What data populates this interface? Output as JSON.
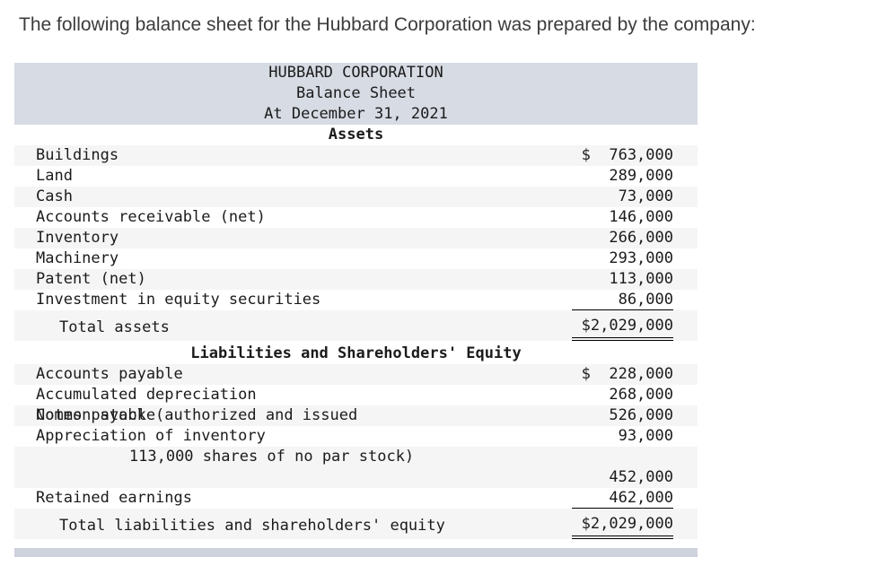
{
  "intro": "The following balance sheet for the Hubbard Corporation was prepared by the company:",
  "statement": {
    "company": "HUBBARD CORPORATION",
    "title": "Balance Sheet",
    "date": "At December 31, 2021"
  },
  "assets": {
    "heading": "Assets",
    "rows": [
      {
        "label": "Buildings",
        "value": "$  763,000"
      },
      {
        "label": "Land",
        "value": "289,000"
      },
      {
        "label": "Cash",
        "value": "73,000"
      },
      {
        "label": "Accounts receivable (net)",
        "value": "146,000"
      },
      {
        "label": "Inventory",
        "value": "266,000"
      },
      {
        "label": "Machinery",
        "value": "293,000"
      },
      {
        "label": "Patent (net)",
        "value": "113,000"
      },
      {
        "label": "Investment in equity securities",
        "value": "86,000"
      }
    ],
    "total": {
      "label": "Total assets",
      "value": "$2,029,000"
    }
  },
  "liabilities": {
    "heading": "Liabilities and Shareholders' Equity",
    "rows": [
      {
        "label": "Accounts payable",
        "value": "$  228,000"
      },
      {
        "label": "Accumulated depreciation",
        "value": "268,000"
      },
      {
        "label": "Notes payable",
        "value": "526,000"
      },
      {
        "label": "Appreciation of inventory",
        "value": "93,000"
      }
    ],
    "common_stock": {
      "line1": "Common stock (authorized and issued",
      "line2": "113,000 shares of no par stock)",
      "value": "452,000"
    },
    "retained": {
      "label": "Retained earnings",
      "value": "462,000"
    },
    "total": {
      "label": "Total liabilities and shareholders' equity",
      "value": "$2,029,000"
    }
  },
  "colors": {
    "header_bg": "#d7dbe4",
    "stripe": "#f5f5f6",
    "footer_bar": "#cdd2dc",
    "text": "#1b1b1b"
  }
}
